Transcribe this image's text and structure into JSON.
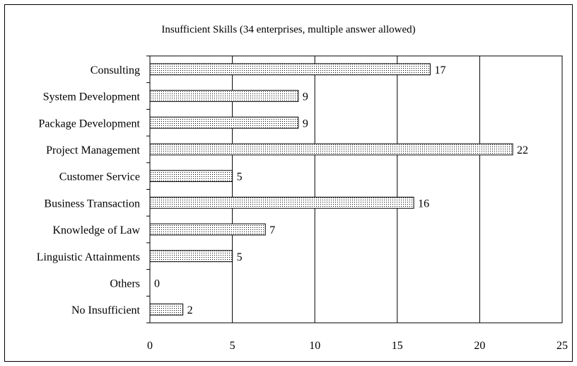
{
  "chart_data": {
    "type": "bar",
    "orientation": "horizontal",
    "title": "Insufficient Skills (34 enterprises, multiple answer allowed)",
    "xlabel": "",
    "ylabel": "",
    "categories": [
      "Consulting",
      "System Development",
      "Package Development",
      "Project Management",
      "Customer Service",
      "Business Transaction",
      "Knowledge of Law",
      "Linguistic Attainments",
      "Others",
      "No Insufficient"
    ],
    "values": [
      17,
      9,
      9,
      22,
      5,
      16,
      7,
      5,
      0,
      2
    ],
    "xlim": [
      0,
      25
    ],
    "xticks": [
      0,
      5,
      10,
      15,
      20,
      25
    ],
    "grid": "vertical",
    "legend": "none",
    "bar_pattern": "dotted",
    "colors": {
      "bar_fill": "#ffffff",
      "bar_dots": "#000000",
      "grid": "#000000"
    }
  }
}
